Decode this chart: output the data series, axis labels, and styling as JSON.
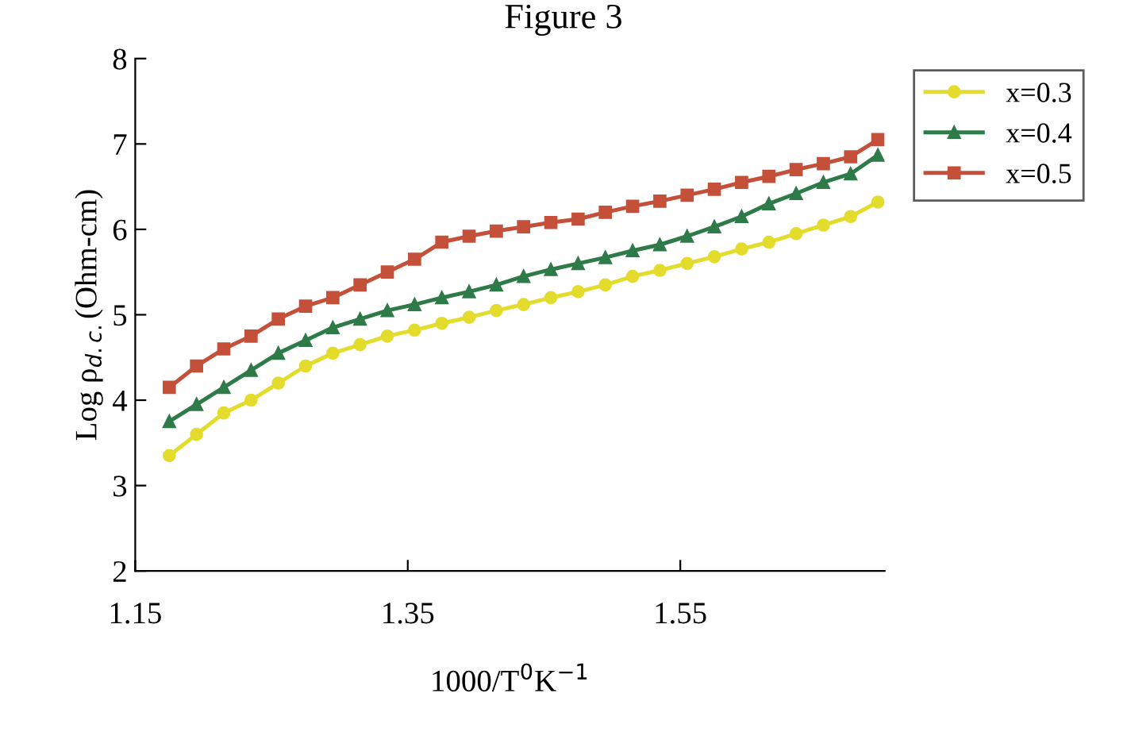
{
  "chart_data": {
    "type": "line",
    "title": "Figure 3",
    "xlabel": "1000/T$^{0}$K$^{−1}$",
    "ylabel": "Log ρ$_{d.c.}$(Ohm-cm)",
    "x": [
      1.175,
      1.195,
      1.215,
      1.235,
      1.255,
      1.275,
      1.295,
      1.315,
      1.335,
      1.355,
      1.375,
      1.395,
      1.415,
      1.435,
      1.455,
      1.475,
      1.495,
      1.515,
      1.535,
      1.555,
      1.575,
      1.595,
      1.615,
      1.635,
      1.655,
      1.675,
      1.695
    ],
    "series": [
      {
        "name": "x=0.3",
        "color": "#e3dc2c",
        "marker": "circle",
        "values": [
          3.35,
          3.6,
          3.85,
          4.0,
          4.2,
          4.4,
          4.55,
          4.65,
          4.75,
          4.82,
          4.9,
          4.97,
          5.05,
          5.12,
          5.2,
          5.27,
          5.35,
          5.45,
          5.52,
          5.6,
          5.68,
          5.77,
          5.85,
          5.95,
          6.05,
          6.15,
          6.32
        ]
      },
      {
        "name": "x=0.4",
        "color": "#2e7a48",
        "marker": "triangle",
        "values": [
          3.75,
          3.95,
          4.15,
          4.35,
          4.55,
          4.7,
          4.85,
          4.95,
          5.05,
          5.12,
          5.2,
          5.27,
          5.35,
          5.45,
          5.53,
          5.6,
          5.67,
          5.75,
          5.82,
          5.92,
          6.03,
          6.15,
          6.3,
          6.42,
          6.55,
          6.65,
          6.87
        ]
      },
      {
        "name": "x=0.5",
        "color": "#c4503a",
        "marker": "square",
        "values": [
          4.15,
          4.4,
          4.6,
          4.75,
          4.95,
          5.1,
          5.2,
          5.35,
          5.5,
          5.65,
          5.85,
          5.92,
          5.98,
          6.03,
          6.08,
          6.12,
          6.2,
          6.27,
          6.33,
          6.4,
          6.47,
          6.55,
          6.62,
          6.7,
          6.77,
          6.85,
          7.05
        ]
      }
    ],
    "xlim": [
      1.15,
      1.7
    ],
    "xticks": [
      1.15,
      1.35,
      1.55
    ],
    "ylim": [
      2,
      8
    ],
    "yticks": [
      2,
      3,
      4,
      5,
      6,
      7,
      8
    ],
    "line_style": "solid",
    "legend": "right",
    "grid": false
  }
}
